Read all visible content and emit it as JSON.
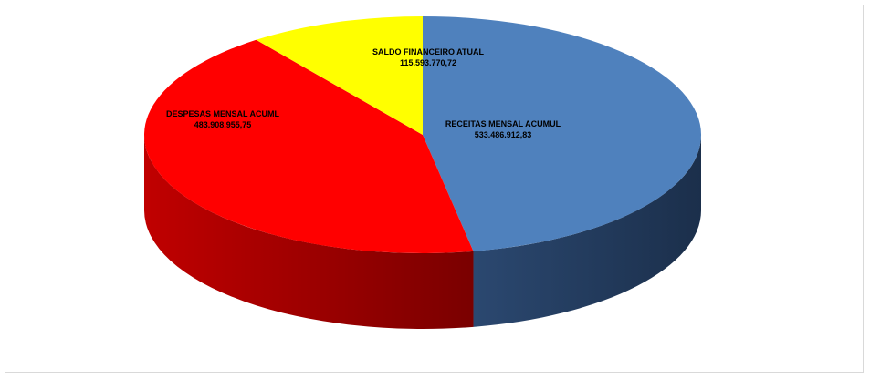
{
  "chart_data": {
    "type": "pie",
    "style": "3d",
    "title": "",
    "slices": [
      {
        "label": "RECEITAS MENSAL ACUMUL",
        "value_text": "533.486.912,83",
        "value": 533486912.83,
        "color": "#4f81bd"
      },
      {
        "label": "DESPESAS MENSAL ACUML",
        "value_text": "483.908.955,75",
        "value": 483908955.75,
        "color": "#ff0000"
      },
      {
        "label": "SALDO FINANCEIRO ATUAL",
        "value_text": "115.593.770,72",
        "value": 115593770.72,
        "color": "#ffff00"
      }
    ]
  }
}
